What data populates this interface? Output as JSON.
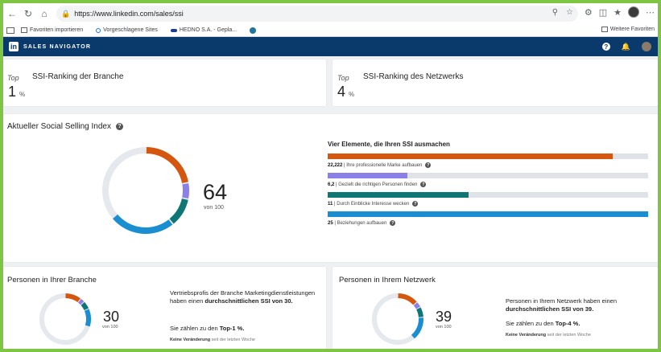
{
  "browser": {
    "url": "https://www.linkedin.com/sales/ssi",
    "bookmarks": [
      "Favoriten importieren",
      "Vorgeschlagene Sites",
      "HEDNO S.A. - Gepla...",
      "Weitere Favoriten"
    ]
  },
  "app": {
    "logo_text": "in",
    "title": "SALES NAVIGATOR"
  },
  "industry_rank": {
    "top_label": "Top",
    "title": "SSI-Ranking der Branche",
    "value": "1",
    "unit": "%"
  },
  "network_rank": {
    "top_label": "Top",
    "title": "SSI-Ranking des Netzwerks",
    "value": "4",
    "unit": "%"
  },
  "ssi": {
    "title": "Aktueller Social Selling Index",
    "score": "64",
    "out_of": "von 100",
    "score_fraction": 0.64,
    "components_title": "Vier Elemente, die Ihren SSI ausmachen",
    "components": [
      {
        "value": "22,222",
        "label": "Ihre professionelle Marke aufbauen",
        "color": "#d5570f",
        "fraction": 0.889
      },
      {
        "value": "6,2",
        "label": "Gezielt die richtigen Personen finden",
        "color": "#8b7fe8",
        "fraction": 0.248
      },
      {
        "value": "11",
        "label": "Durch Einblicke Interesse wecken",
        "color": "#0e7775",
        "fraction": 0.44
      },
      {
        "value": "25",
        "label": "Beziehungen aufbauen",
        "color": "#1a8ed1",
        "fraction": 1.0
      }
    ]
  },
  "industry_people": {
    "title": "Personen in Ihrer Branche",
    "score": "30",
    "out_of": "von 100",
    "text_1": "Vertriebsprofis der Branche Marketingdienstleistungen haben einen",
    "text_bold": "durchschnittlichen SSI von 30.",
    "text_2_pre": "Sie zählen zu den",
    "text_2_bold": "Top-1 %.",
    "no_change": "Keine Veränderung",
    "no_change_suffix": "seit der letzten Woche"
  },
  "network_people": {
    "title": "Personen in Ihrem Netzwerk",
    "score": "39",
    "out_of": "von 100",
    "text_1": "Personen in Ihrem Netzwerk haben einen",
    "text_bold": "durchschnittlichen SSI von 39.",
    "text_2_pre": "Sie zählen zu den",
    "text_2_bold": "Top-4 %.",
    "no_change": "Keine Veränderung",
    "no_change_suffix": "seit der letzten Woche"
  }
}
